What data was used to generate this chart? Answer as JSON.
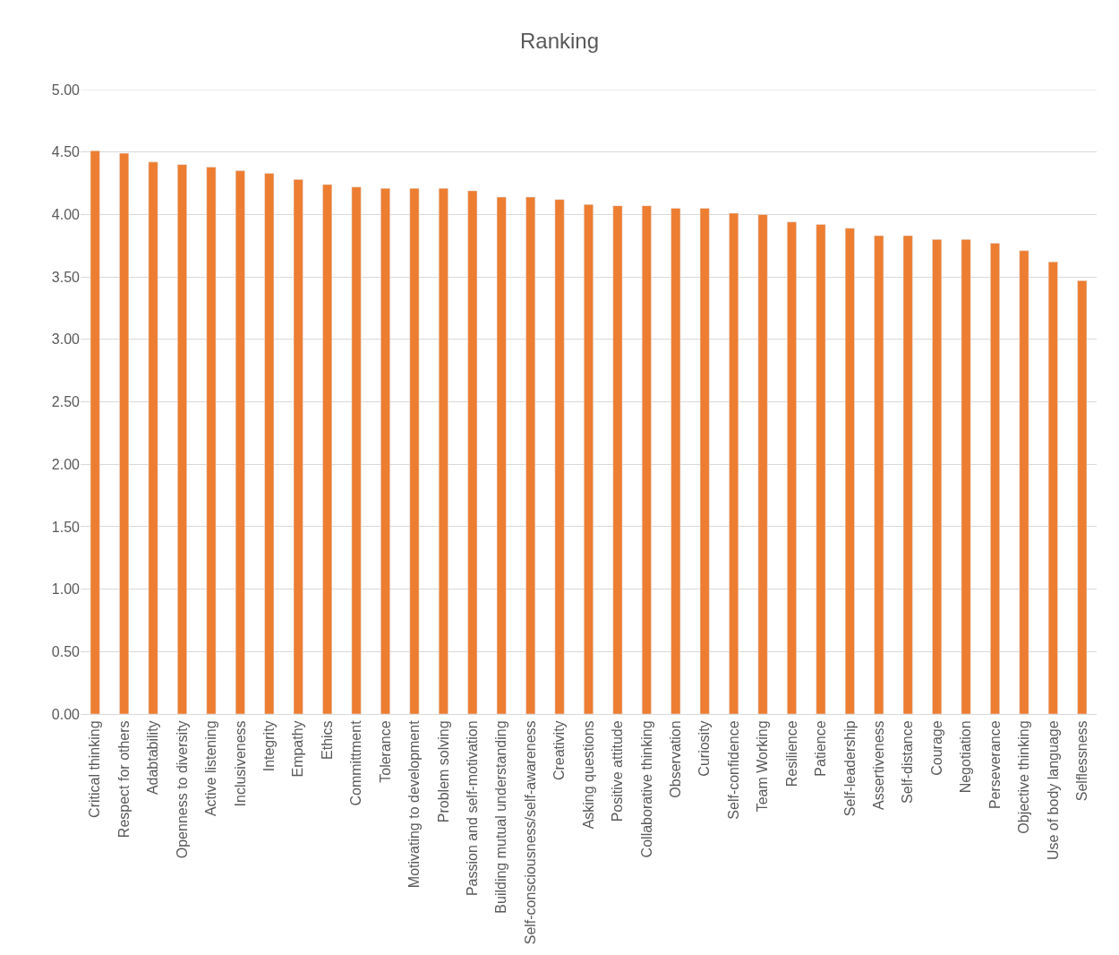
{
  "chart_data": {
    "type": "bar",
    "title": "Ranking",
    "categories": [
      "Critical thinking",
      "Respect for others",
      "Adabtability",
      "Openness to diversity",
      "Active listening",
      "Inclusiveness",
      "Integrity",
      "Empathy",
      "Ethics",
      "Committment",
      "Tolerance",
      "Motivating to development",
      "Problem solving",
      "Passion and self-motivation",
      "Building mutual understanding",
      "Self-consciousness/self-awareness",
      "Creativity",
      "Asking questions",
      "Positive attitude",
      "Collaborative thinking",
      "Observation",
      "Curiosity",
      "Self-confidence",
      "Team Working",
      "Resilience",
      "Patience",
      "Self-leadership",
      "Assertiveness",
      "Self-distance",
      "Courage",
      "Negotiation",
      "Perseverance",
      "Objective thinking",
      "Use of body language",
      "Selflessness"
    ],
    "values": [
      4.51,
      4.49,
      4.42,
      4.4,
      4.38,
      4.35,
      4.33,
      4.28,
      4.24,
      4.22,
      4.21,
      4.21,
      4.21,
      4.19,
      4.14,
      4.14,
      4.12,
      4.08,
      4.07,
      4.07,
      4.05,
      4.05,
      4.01,
      4.0,
      3.94,
      3.92,
      3.89,
      3.83,
      3.83,
      3.8,
      3.8,
      3.77,
      3.71,
      3.62,
      3.47
    ],
    "color": "#ed7d31",
    "ylim": [
      0,
      5
    ],
    "yticks": [
      {
        "value": 0,
        "label": "0.00"
      },
      {
        "value": 0.5,
        "label": "0.50"
      },
      {
        "value": 1,
        "label": "1.00"
      },
      {
        "value": 1.5,
        "label": "1.50"
      },
      {
        "value": 2,
        "label": "2.00"
      },
      {
        "value": 2.5,
        "label": "2.50"
      },
      {
        "value": 3,
        "label": "3.00"
      },
      {
        "value": 3.5,
        "label": "3.50"
      },
      {
        "value": 4,
        "label": "4.00"
      },
      {
        "value": 4.5,
        "label": "4.50"
      },
      {
        "value": 5,
        "label": "5.00"
      }
    ],
    "grid": "y",
    "legend": false
  }
}
